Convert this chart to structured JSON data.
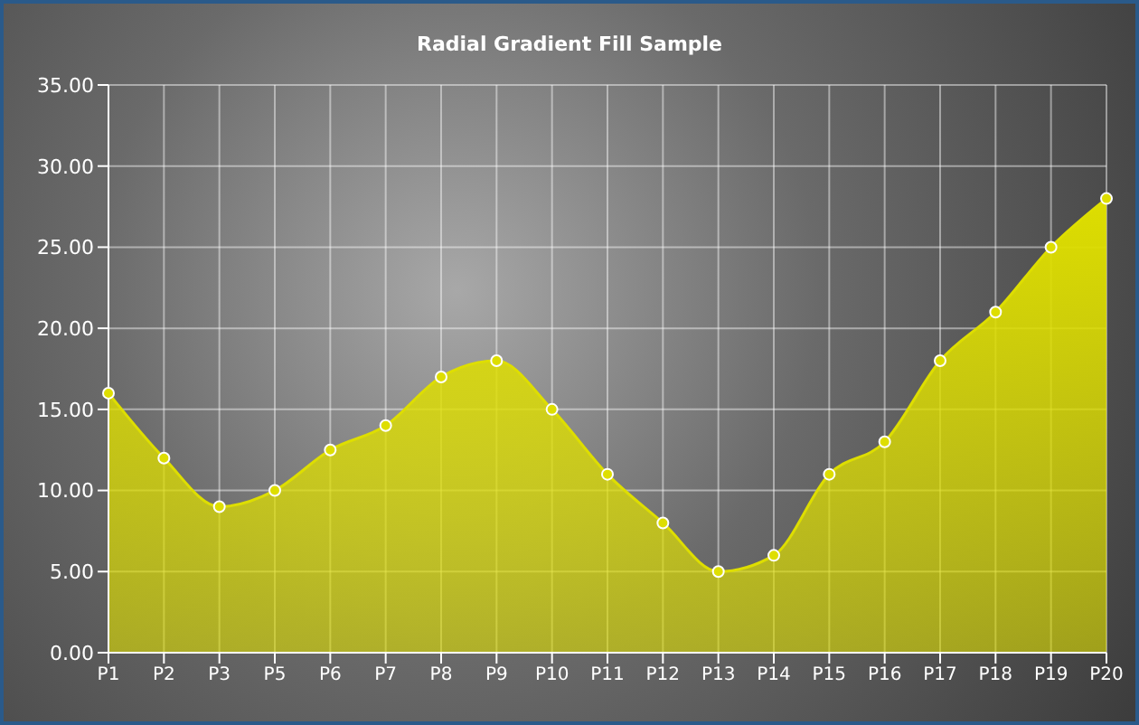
{
  "chart_data": {
    "type": "area",
    "title": "Radial Gradient Fill Sample",
    "categories": [
      "P1",
      "P2",
      "P3",
      "P5",
      "P6",
      "P7",
      "P8",
      "P9",
      "P10",
      "P11",
      "P12",
      "P13",
      "P14",
      "P15",
      "P16",
      "P17",
      "P18",
      "P19",
      "P20"
    ],
    "values": [
      16,
      12,
      9,
      10,
      12.5,
      14,
      17,
      18,
      15,
      11,
      8,
      5,
      6,
      11,
      13,
      18,
      21,
      25,
      28
    ],
    "color": "#dede00",
    "ylim": [
      0,
      35
    ],
    "yticks": [
      {
        "value": 0,
        "label": "0.00"
      },
      {
        "value": 5,
        "label": "5.00"
      },
      {
        "value": 10,
        "label": "10.00"
      },
      {
        "value": 15,
        "label": "15.00"
      },
      {
        "value": 20,
        "label": "20.00"
      },
      {
        "value": 25,
        "label": "25.00"
      },
      {
        "value": 30,
        "label": "30.00"
      },
      {
        "value": 35,
        "label": "35.00"
      }
    ],
    "grid": true,
    "marker": "circle"
  }
}
